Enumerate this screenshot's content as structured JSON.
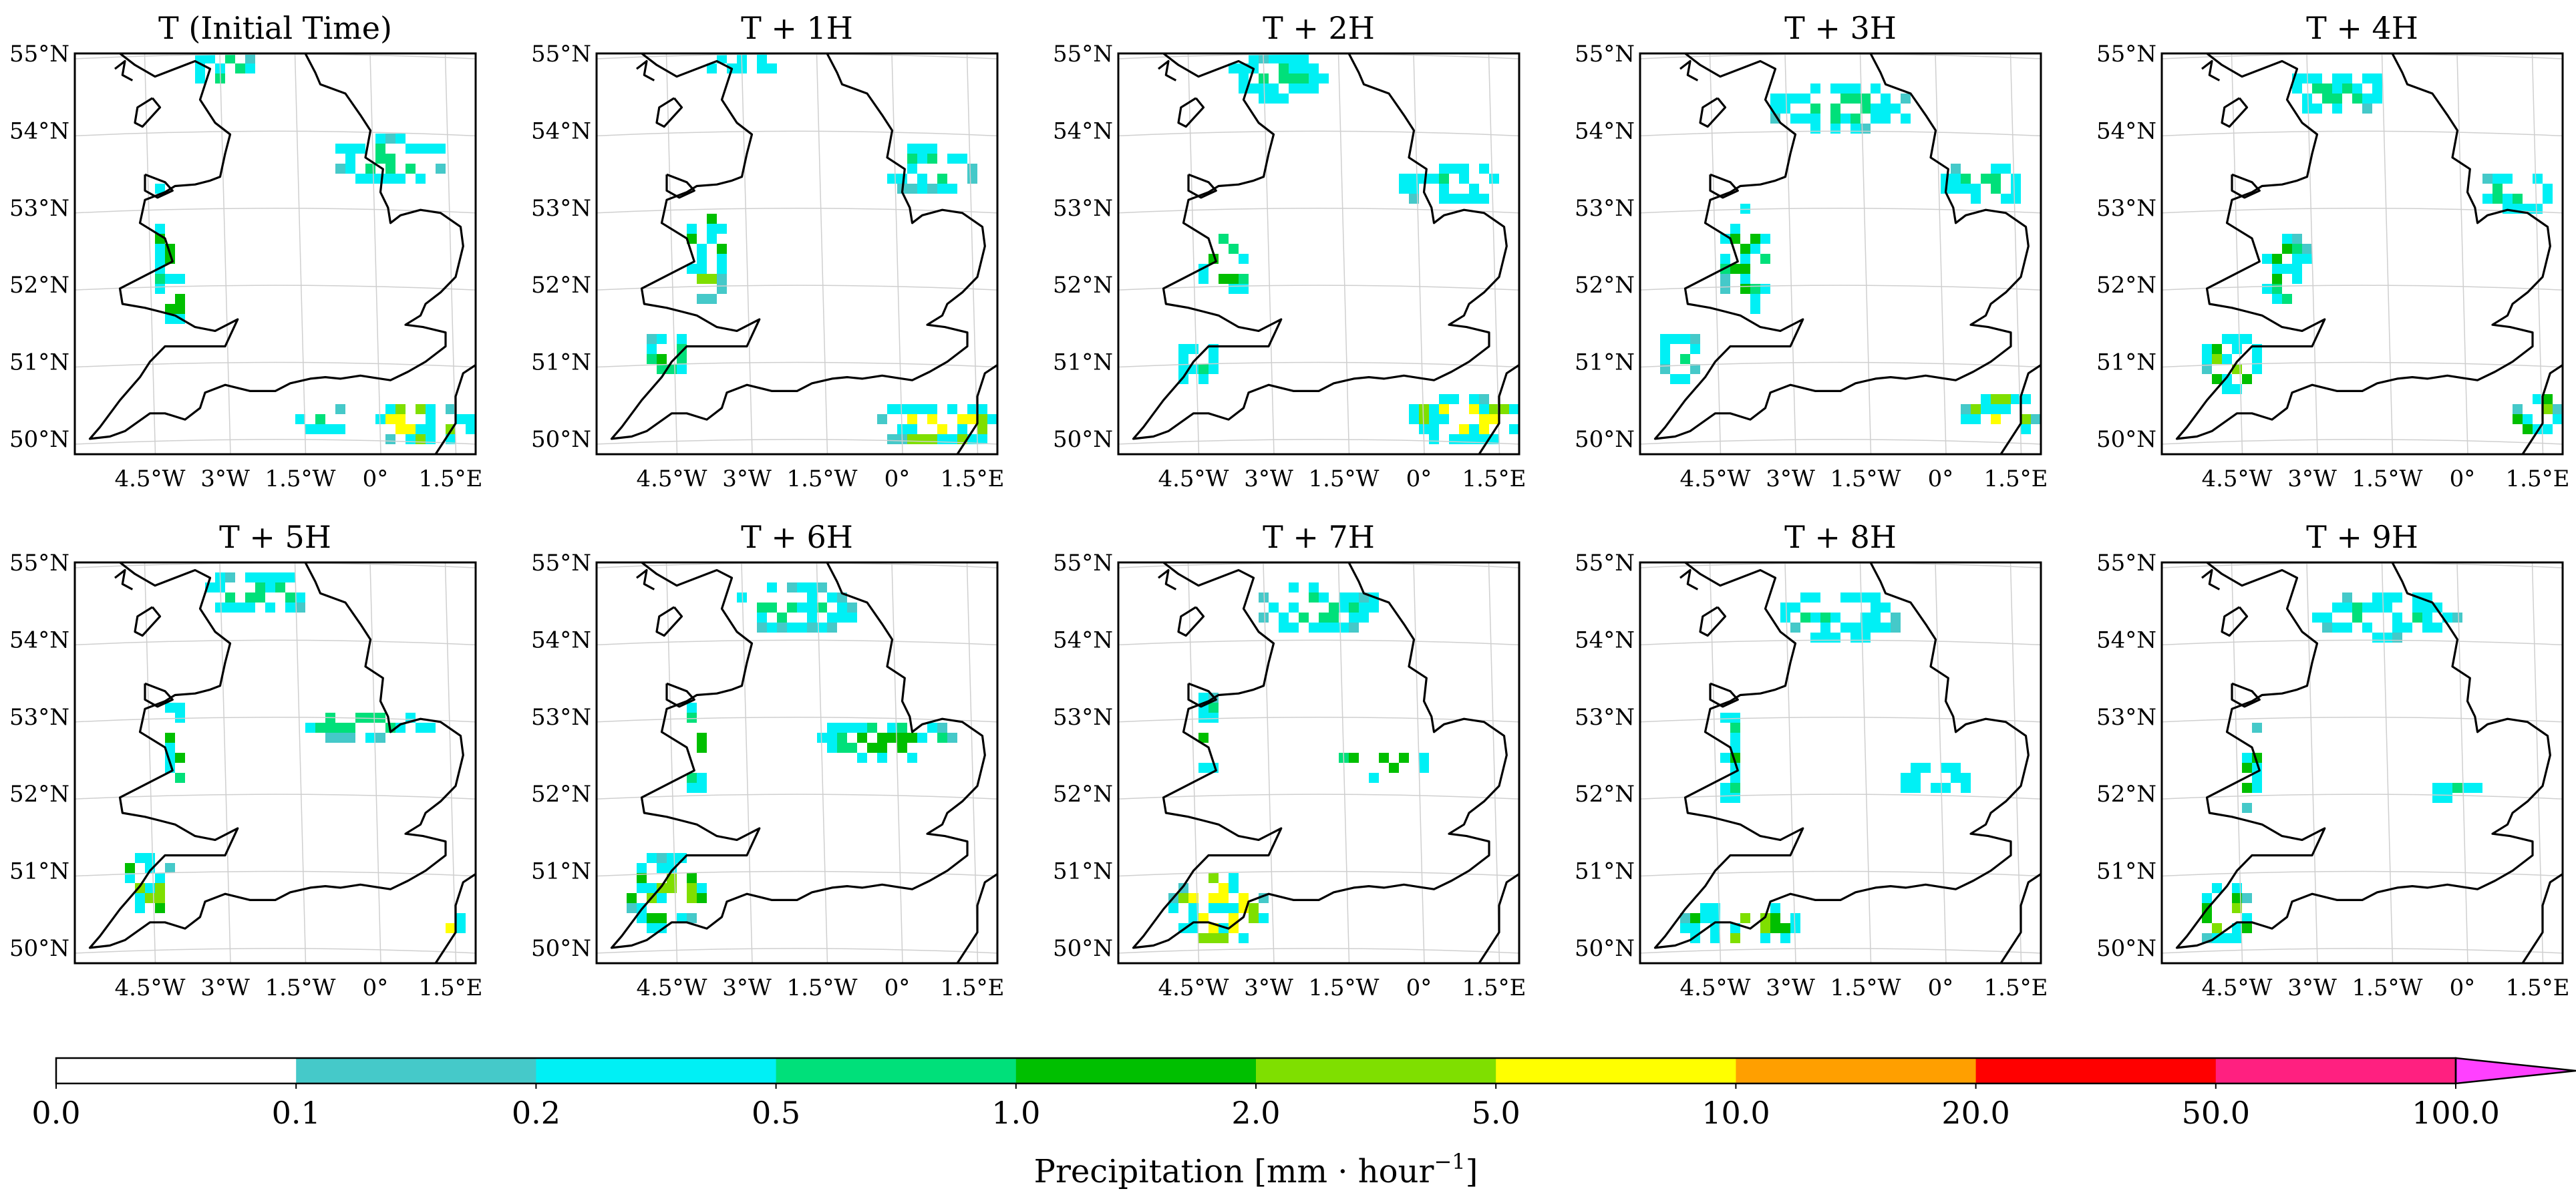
{
  "chart_data": {
    "type": "heatmap",
    "description_free": true,
    "panels": [
      {
        "title": "T (Initial Time)",
        "rain": [
          {
            "lon": -3.0,
            "lat": 54.8,
            "rx": 0.6,
            "ry": 0.25,
            "level": 3
          },
          {
            "lon": 0.3,
            "lat": 53.6,
            "rx": 1.2,
            "ry": 0.3,
            "level": 3
          },
          {
            "lon": -4.2,
            "lat": 52.6,
            "rx": 0.3,
            "ry": 0.8,
            "level": 4
          },
          {
            "lon": -4.0,
            "lat": 51.8,
            "rx": 0.3,
            "ry": 0.3,
            "level": 4
          },
          {
            "lon": 0.9,
            "lat": 50.2,
            "rx": 1.1,
            "ry": 0.25,
            "level": 6
          },
          {
            "lon": -1.0,
            "lat": 50.25,
            "rx": 0.7,
            "ry": 0.15,
            "level": 3
          }
        ]
      },
      {
        "title": "T + 1H",
        "rain": [
          {
            "lon": -3.2,
            "lat": 54.8,
            "rx": 0.8,
            "ry": 0.25,
            "level": 3
          },
          {
            "lon": 0.6,
            "lat": 53.5,
            "rx": 1.0,
            "ry": 0.3,
            "level": 3
          },
          {
            "lon": -3.8,
            "lat": 52.4,
            "rx": 0.4,
            "ry": 0.7,
            "level": 5
          },
          {
            "lon": -4.6,
            "lat": 51.1,
            "rx": 0.4,
            "ry": 0.3,
            "level": 4
          },
          {
            "lon": 0.8,
            "lat": 50.2,
            "rx": 1.3,
            "ry": 0.3,
            "level": 6
          }
        ]
      },
      {
        "title": "T + 2H",
        "rain": [
          {
            "lon": -2.8,
            "lat": 54.7,
            "rx": 1.0,
            "ry": 0.3,
            "level": 3
          },
          {
            "lon": 0.6,
            "lat": 53.3,
            "rx": 1.0,
            "ry": 0.3,
            "level": 3
          },
          {
            "lon": -3.9,
            "lat": 52.2,
            "rx": 0.6,
            "ry": 0.5,
            "level": 4
          },
          {
            "lon": -4.4,
            "lat": 51.0,
            "rx": 0.5,
            "ry": 0.3,
            "level": 3
          },
          {
            "lon": 0.9,
            "lat": 50.25,
            "rx": 1.2,
            "ry": 0.3,
            "level": 6
          }
        ]
      },
      {
        "title": "T + 3H",
        "rain": [
          {
            "lon": -2.0,
            "lat": 54.3,
            "rx": 1.5,
            "ry": 0.3,
            "level": 3
          },
          {
            "lon": 0.8,
            "lat": 53.3,
            "rx": 0.9,
            "ry": 0.3,
            "level": 3
          },
          {
            "lon": -3.9,
            "lat": 52.3,
            "rx": 0.5,
            "ry": 0.7,
            "level": 4
          },
          {
            "lon": -5.2,
            "lat": 51.1,
            "rx": 0.4,
            "ry": 0.4,
            "level": 3
          },
          {
            "lon": 1.2,
            "lat": 50.3,
            "rx": 0.8,
            "ry": 0.3,
            "level": 6
          }
        ]
      },
      {
        "title": "T + 4H",
        "rain": [
          {
            "lon": -2.5,
            "lat": 54.5,
            "rx": 1.0,
            "ry": 0.3,
            "level": 3
          },
          {
            "lon": 1.0,
            "lat": 53.2,
            "rx": 0.8,
            "ry": 0.3,
            "level": 3
          },
          {
            "lon": -3.5,
            "lat": 52.2,
            "rx": 0.5,
            "ry": 0.5,
            "level": 4
          },
          {
            "lon": -4.6,
            "lat": 51.0,
            "rx": 0.6,
            "ry": 0.4,
            "level": 5
          },
          {
            "lon": 1.5,
            "lat": 50.3,
            "rx": 0.5,
            "ry": 0.3,
            "level": 5
          }
        ]
      },
      {
        "title": "T + 5H",
        "rain": [
          {
            "lon": -2.3,
            "lat": 54.6,
            "rx": 1.2,
            "ry": 0.3,
            "level": 3
          },
          {
            "lon": -0.3,
            "lat": 52.9,
            "rx": 1.5,
            "ry": 0.2,
            "level": 3
          },
          {
            "lon": -4.0,
            "lat": 52.6,
            "rx": 0.3,
            "ry": 0.6,
            "level": 4
          },
          {
            "lon": -4.6,
            "lat": 50.8,
            "rx": 0.7,
            "ry": 0.4,
            "level": 5
          },
          {
            "lon": 1.6,
            "lat": 50.2,
            "rx": 0.3,
            "ry": 0.2,
            "level": 6
          }
        ]
      },
      {
        "title": "T + 6H",
        "rain": [
          {
            "lon": -2.0,
            "lat": 54.4,
            "rx": 1.3,
            "ry": 0.3,
            "level": 3
          },
          {
            "lon": -0.2,
            "lat": 52.7,
            "rx": 1.5,
            "ry": 0.25,
            "level": 4
          },
          {
            "lon": -4.0,
            "lat": 52.6,
            "rx": 0.3,
            "ry": 0.6,
            "level": 4
          },
          {
            "lon": -4.6,
            "lat": 50.7,
            "rx": 0.9,
            "ry": 0.5,
            "level": 5
          }
        ]
      },
      {
        "title": "T + 7H",
        "rain": [
          {
            "lon": -2.0,
            "lat": 54.4,
            "rx": 1.3,
            "ry": 0.3,
            "level": 3
          },
          {
            "lon": -0.8,
            "lat": 52.4,
            "rx": 1.1,
            "ry": 0.2,
            "level": 4
          },
          {
            "lon": -4.2,
            "lat": 52.8,
            "rx": 0.3,
            "ry": 0.5,
            "level": 4
          },
          {
            "lon": -4.0,
            "lat": 50.5,
            "rx": 1.0,
            "ry": 0.5,
            "level": 6
          }
        ]
      },
      {
        "title": "T + 8H",
        "rain": [
          {
            "lon": -2.0,
            "lat": 54.3,
            "rx": 1.3,
            "ry": 0.3,
            "level": 3
          },
          {
            "lon": -0.1,
            "lat": 52.2,
            "rx": 0.8,
            "ry": 0.2,
            "level": 2
          },
          {
            "lon": -4.2,
            "lat": 52.5,
            "rx": 0.3,
            "ry": 0.6,
            "level": 4
          },
          {
            "lon": -4.0,
            "lat": 50.3,
            "rx": 1.2,
            "ry": 0.3,
            "level": 5
          }
        ]
      },
      {
        "title": "T + 9H",
        "rain": [
          {
            "lon": -1.5,
            "lat": 54.3,
            "rx": 1.5,
            "ry": 0.3,
            "level": 3
          },
          {
            "lon": -0.1,
            "lat": 52.0,
            "rx": 0.6,
            "ry": 0.15,
            "level": 3
          },
          {
            "lon": -4.2,
            "lat": 52.3,
            "rx": 0.3,
            "ry": 0.6,
            "level": 4
          },
          {
            "lon": -4.7,
            "lat": 50.4,
            "rx": 0.6,
            "ry": 0.4,
            "level": 5
          }
        ]
      }
    ],
    "lat_ticks": [
      "50°N",
      "51°N",
      "52°N",
      "53°N",
      "54°N",
      "55°N"
    ],
    "lat_values": [
      50,
      51,
      52,
      53,
      54,
      55
    ],
    "lon_ticks": [
      "4.5°W",
      "3°W",
      "1.5°W",
      "0°",
      "1.5°E"
    ],
    "lon_values": [
      -4.5,
      -3.0,
      -1.5,
      0,
      1.5
    ],
    "lon_range": [
      -6.0,
      2.0
    ],
    "lat_range": [
      49.8,
      55.0
    ],
    "grid": true,
    "colorbar": {
      "orientation": "horizontal",
      "placement": "bottom",
      "label": "Precipitation [mm · hour",
      "label_superscript": "−1",
      "label_suffix": "]",
      "tick_labels": [
        "0.0",
        "0.1",
        "0.2",
        "0.5",
        "1.0",
        "2.0",
        "5.0",
        "10.0",
        "20.0",
        "50.0",
        "100.0"
      ],
      "tick_values": [
        0.0,
        0.1,
        0.2,
        0.5,
        1.0,
        2.0,
        5.0,
        10.0,
        20.0,
        50.0,
        100.0
      ],
      "colors": [
        "#ffffff",
        "#45c9c9",
        "#00f0f5",
        "#00e07a",
        "#00bf00",
        "#7fdf00",
        "#ffff00",
        "#ff9f00",
        "#ff0000",
        "#ff2080",
        "#ff40ff"
      ],
      "extend": "max"
    }
  }
}
